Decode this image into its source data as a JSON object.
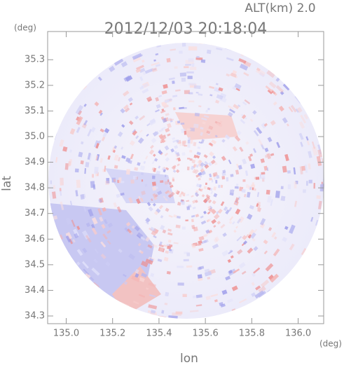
{
  "chart_data": {
    "type": "radar-map",
    "title": "2012/12/03 20:18:04",
    "subtitle": "ALT(km) 2.0",
    "x_label": "lon",
    "y_label": "lat",
    "x_unit": "(deg)",
    "y_unit": "(deg)",
    "xlim": [
      134.92,
      136.11
    ],
    "ylim": [
      34.27,
      35.41
    ],
    "xticks": [
      {
        "value": 135,
        "label": "135.0"
      },
      135.2,
      135.4,
      135.6,
      135.8,
      {
        "value": 136,
        "label": "136.0"
      }
    ],
    "yticks": [
      34.3,
      34.4,
      34.5,
      34.6,
      34.7,
      34.8,
      34.9,
      {
        "value": 35,
        "label": "35.0"
      },
      35.1,
      35.2,
      35.3
    ]
  }
}
